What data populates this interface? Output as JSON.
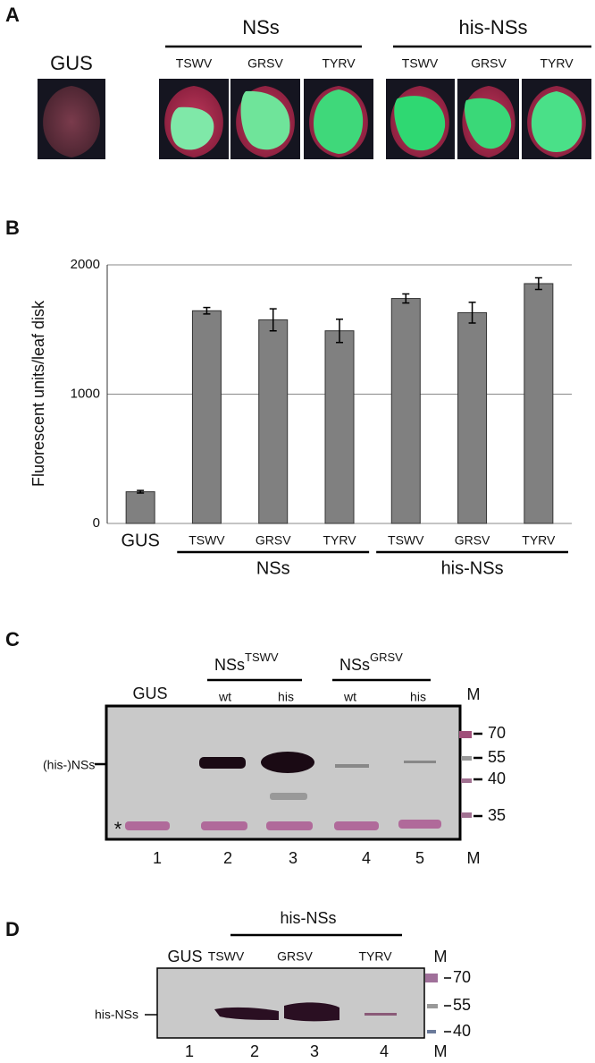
{
  "panel_a": {
    "letter": "A",
    "control": "GUS",
    "groups": [
      {
        "name": "NSs",
        "viruses": [
          "TSWV",
          "GRSV",
          "TYRV"
        ]
      },
      {
        "name": "his-NSs",
        "viruses": [
          "TSWV",
          "GRSV",
          "TYRV"
        ]
      }
    ]
  },
  "chart_data": {
    "type": "bar",
    "letter": "B",
    "y_label": "Fluorescent units/leaf disk",
    "categories": [
      "GUS",
      "TSWV",
      "GRSV",
      "TYRV",
      "TSWV",
      "GRSV",
      "TYRV"
    ],
    "values": [
      245,
      1645,
      1575,
      1490,
      1740,
      1630,
      1855
    ],
    "errors": [
      10,
      25,
      85,
      90,
      35,
      80,
      45
    ],
    "groups": [
      "NSs",
      "his-NSs"
    ],
    "color": "#808080",
    "ylim": [
      0,
      2000
    ],
    "yticks": [
      0,
      1000,
      2000
    ],
    "grid": true
  },
  "panel_c": {
    "letter": "C",
    "control": "GUS",
    "construct_1": "NSs",
    "construct_1_sup": "TSWV",
    "construct_2": "NSs",
    "construct_2_sup": "GRSV",
    "lane_types": [
      "wt",
      "his",
      "wt",
      "his"
    ],
    "marker": "M",
    "band_label": "(his-)NSs",
    "asterisk": "*",
    "marker_sizes": [
      "70",
      "55",
      "40",
      "35"
    ],
    "lanes": [
      "1",
      "2",
      "3",
      "4",
      "5",
      "M"
    ]
  },
  "panel_d": {
    "letter": "D",
    "group": "his-NSs",
    "control": "GUS",
    "viruses": [
      "TSWV",
      "GRSV",
      "TYRV"
    ],
    "marker": "M",
    "band_label": "his-NSs",
    "marker_sizes": [
      "70",
      "55",
      "40"
    ],
    "lanes": [
      "1",
      "2",
      "3",
      "4",
      "M"
    ]
  }
}
